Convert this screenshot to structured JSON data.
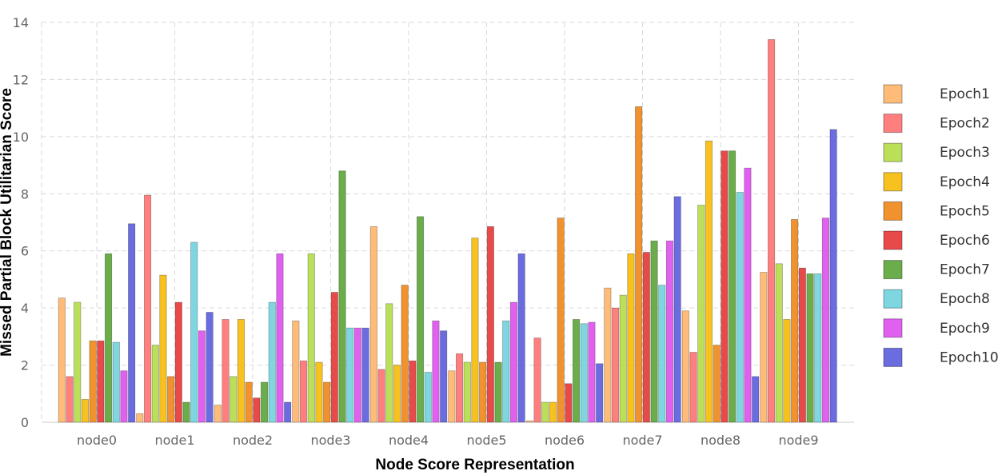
{
  "chart_data": {
    "type": "bar",
    "xlabel": "Node Score Representation",
    "ylabel": "Missed Partial Block Utilitarian Score",
    "ylim": [
      0,
      14
    ],
    "yticks": [
      0,
      2,
      4,
      6,
      8,
      10,
      12,
      14
    ],
    "grid": true,
    "legend_position": "right",
    "categories": [
      "node0",
      "node1",
      "node2",
      "node3",
      "node4",
      "node5",
      "node6",
      "node7",
      "node8",
      "node9"
    ],
    "series": [
      {
        "name": "Epoch1",
        "color": "#ffbb78",
        "values": [
          4.35,
          0.3,
          0.6,
          3.55,
          6.85,
          1.8,
          0.05,
          4.7,
          3.9,
          5.25
        ]
      },
      {
        "name": "Epoch2",
        "color": "#ff7f7f",
        "values": [
          1.6,
          7.95,
          3.6,
          2.15,
          1.85,
          2.4,
          2.95,
          4.0,
          2.45,
          13.4
        ]
      },
      {
        "name": "Epoch3",
        "color": "#bcdf5a",
        "values": [
          4.2,
          2.7,
          1.6,
          5.9,
          4.15,
          2.1,
          0.7,
          4.45,
          7.6,
          5.55
        ]
      },
      {
        "name": "Epoch4",
        "color": "#f7c11f",
        "values": [
          0.8,
          5.15,
          3.6,
          2.1,
          2.0,
          6.45,
          0.7,
          5.9,
          9.85,
          3.6
        ]
      },
      {
        "name": "Epoch5",
        "color": "#f0922e",
        "values": [
          2.85,
          1.6,
          1.4,
          1.4,
          4.8,
          2.1,
          7.15,
          11.05,
          2.7,
          7.1
        ]
      },
      {
        "name": "Epoch6",
        "color": "#e84a4a",
        "values": [
          2.85,
          4.2,
          0.85,
          4.55,
          2.15,
          6.85,
          1.35,
          5.95,
          9.5,
          5.4
        ]
      },
      {
        "name": "Epoch7",
        "color": "#6aad4a",
        "values": [
          5.9,
          0.7,
          1.4,
          8.8,
          7.2,
          2.1,
          3.6,
          6.35,
          9.5,
          5.2
        ]
      },
      {
        "name": "Epoch8",
        "color": "#7ed6e0",
        "values": [
          2.8,
          6.3,
          4.2,
          3.3,
          1.75,
          3.55,
          3.45,
          4.8,
          8.05,
          5.2
        ]
      },
      {
        "name": "Epoch9",
        "color": "#e060f0",
        "values": [
          1.8,
          3.2,
          5.9,
          3.3,
          3.55,
          4.2,
          3.5,
          6.35,
          8.9,
          7.15
        ]
      },
      {
        "name": "Epoch10",
        "color": "#6a6ce0",
        "values": [
          6.95,
          3.85,
          0.7,
          3.3,
          3.2,
          5.9,
          2.05,
          7.9,
          1.6,
          10.25
        ]
      }
    ]
  }
}
